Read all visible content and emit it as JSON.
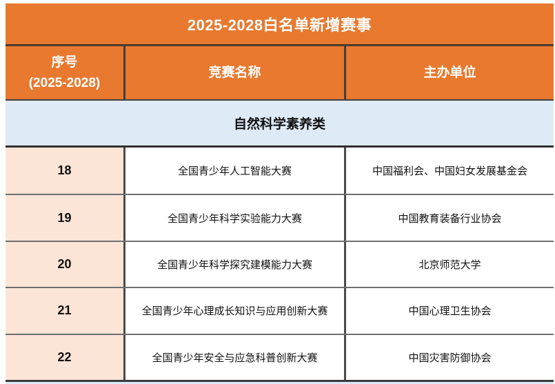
{
  "table": {
    "title": "2025-2028白名单新增赛事",
    "columns": [
      {
        "line1": "序号",
        "line2": "(2025-2028)"
      },
      {
        "label": "竞赛名称"
      },
      {
        "label": "主办单位"
      }
    ],
    "section": "自然科学素养类",
    "rows": [
      {
        "no": "18",
        "name": "全国青少年人工智能大赛",
        "organizer": "中国福利会、中国妇女发展基金会"
      },
      {
        "no": "19",
        "name": "全国青少年科学实验能力大赛",
        "organizer": "中国教育装备行业协会"
      },
      {
        "no": "20",
        "name": "全国青少年科学探究建模能力大赛",
        "organizer": "北京师范大学"
      },
      {
        "no": "21",
        "name": "全国青少年心理成长知识与应用创新大赛",
        "organizer": "中国心理卫生协会"
      },
      {
        "no": "22",
        "name": "全国青少年安全与应急科普创新大赛",
        "organizer": "中国灾害防御协会"
      }
    ],
    "colors": {
      "header_orange": "#E8792F",
      "section_blue": "#DEEBF7",
      "seq_column_peach": "#FCE4D6",
      "grid_border_dark": "#3F3F3F",
      "grid_border_gray": "#6E6E6E"
    }
  }
}
